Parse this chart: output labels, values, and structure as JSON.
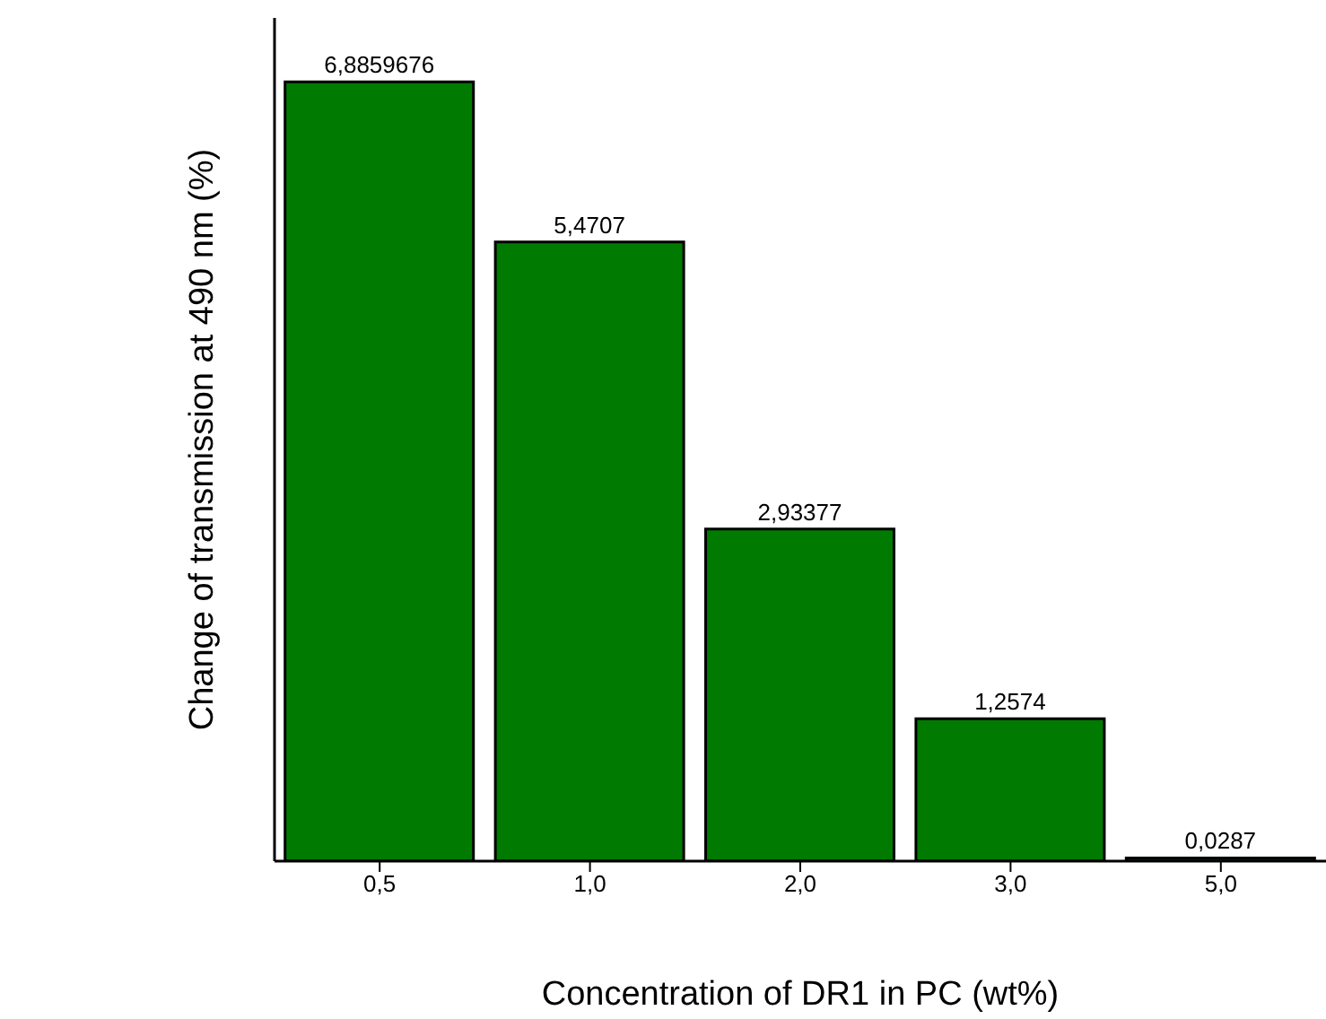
{
  "chart_data": {
    "type": "bar",
    "xlabel": "Concentration of DR1 in PC (wt%)",
    "ylabel": "Change of transmission at 490 nm (%)",
    "categories": [
      "0,5",
      "1,0",
      "2,0",
      "3,0",
      "5,0"
    ],
    "values": [
      6.8859676,
      5.4707,
      2.93377,
      1.2574,
      0.0287
    ],
    "value_labels": [
      "6,8859676",
      "5,4707",
      "2,93377",
      "1,2574",
      "0,0287"
    ],
    "color": "#007a00",
    "ylim": [
      0,
      7.45
    ],
    "tick_labels": "x",
    "grid": false
  }
}
